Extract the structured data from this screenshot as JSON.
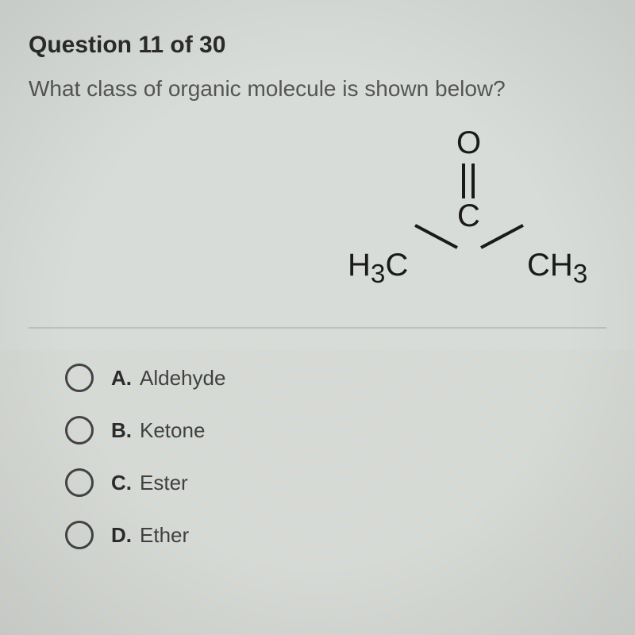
{
  "question": {
    "header": "Question 11 of 30",
    "text": "What class of organic molecule is shown below?"
  },
  "molecule": {
    "top_atom": "O",
    "center_atom": "C",
    "left_group_prefix": "H",
    "left_group_sub": "3",
    "left_group_suffix": "C",
    "right_group_prefix": "CH",
    "right_group_sub": "3",
    "double_bond_color": "#1a1a1a",
    "bond_color": "#1a1a1a",
    "atom_color": "#1a1a1a",
    "atom_fontsize": 40,
    "sub_fontsize": 28
  },
  "options": [
    {
      "letter": "A.",
      "text": "Aldehyde"
    },
    {
      "letter": "B.",
      "text": "Ketone"
    },
    {
      "letter": "C.",
      "text": "Ester"
    },
    {
      "letter": "D.",
      "text": "Ether"
    }
  ],
  "style": {
    "background_color": "#d8dcd8",
    "header_color": "#2b2b2b",
    "text_color": "#555555",
    "option_letter_color": "#2b2b2b",
    "option_text_color": "#414141",
    "radio_border_color": "#444444",
    "divider_color": "rgba(0,0,0,0.12)",
    "header_fontsize": 30,
    "question_fontsize": 28,
    "option_fontsize": 26
  }
}
